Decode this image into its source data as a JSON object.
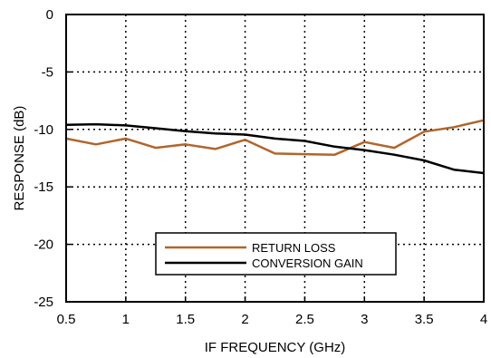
{
  "chart_data": {
    "type": "line",
    "title": "",
    "xlabel": "IF FREQUENCY (GHz)",
    "ylabel": "RESPONSE (dB)",
    "xlim": [
      0.5,
      4
    ],
    "ylim": [
      -25,
      0
    ],
    "x_ticks": [
      0.5,
      1,
      1.5,
      2,
      2.5,
      3,
      3.5,
      4
    ],
    "x_tick_labels": [
      "0.5",
      "1",
      "1.5",
      "2",
      "2.5",
      "3",
      "3.5",
      "4"
    ],
    "y_ticks": [
      0,
      -5,
      -10,
      -15,
      -20,
      -25
    ],
    "y_tick_labels": [
      "0",
      "-5",
      "-10",
      "-15",
      "-20",
      "-25"
    ],
    "grid": true,
    "grid_style": "dotted",
    "legend_position": "bottom-center",
    "series": [
      {
        "name": "RETURN LOSS",
        "color": "#b2652a",
        "x": [
          0.5,
          0.75,
          1.0,
          1.25,
          1.5,
          1.75,
          2.0,
          2.25,
          2.5,
          2.75,
          3.0,
          3.25,
          3.5,
          3.75,
          4.0
        ],
        "y": [
          -10.8,
          -11.3,
          -10.8,
          -11.6,
          -11.3,
          -11.7,
          -10.9,
          -12.1,
          -12.15,
          -12.2,
          -11.1,
          -11.6,
          -10.2,
          -9.8,
          -9.2
        ]
      },
      {
        "name": "CONVERSION GAIN",
        "color": "#000000",
        "x": [
          0.5,
          0.75,
          1.0,
          1.25,
          1.5,
          1.75,
          2.0,
          2.25,
          2.5,
          2.75,
          3.0,
          3.25,
          3.5,
          3.75,
          4.0
        ],
        "y": [
          -9.6,
          -9.55,
          -9.65,
          -9.9,
          -10.15,
          -10.35,
          -10.45,
          -10.8,
          -11.0,
          -11.5,
          -11.8,
          -12.2,
          -12.7,
          -13.5,
          -13.8
        ]
      }
    ]
  }
}
